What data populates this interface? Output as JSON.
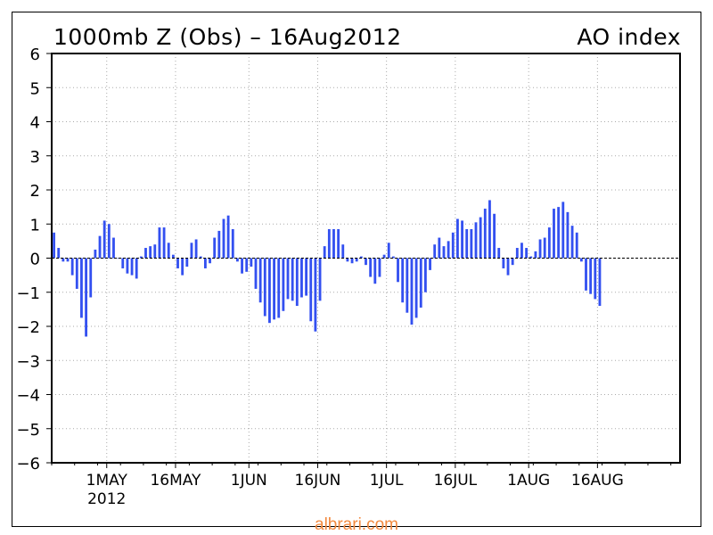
{
  "chart_data": {
    "type": "bar",
    "title": "1000mb Z (Obs) – 16Aug2012",
    "title_right": "AO index",
    "xlabel": "",
    "ylabel": "",
    "ylim": [
      -6,
      6
    ],
    "yticks": [
      6,
      5,
      4,
      3,
      2,
      1,
      0,
      -1,
      -2,
      -3,
      -4,
      -5,
      -6
    ],
    "ytick_labels": [
      "6",
      "5",
      "4",
      "3",
      "2",
      "1",
      "0",
      "−1",
      "−2",
      "−3",
      "−4",
      "−5",
      "−6"
    ],
    "xtick_labels": [
      "1MAY",
      "16MAY",
      "1JUN",
      "16JUN",
      "1JUL",
      "16JUL",
      "1AUG",
      "16AUG"
    ],
    "xtick_dates": [
      "2012-05-01",
      "2012-05-16",
      "2012-06-01",
      "2012-06-16",
      "2012-07-01",
      "2012-07-16",
      "2012-08-01",
      "2012-08-16"
    ],
    "x_sublabel": "2012",
    "x_range": [
      "2012-04-19",
      "2012-09-03"
    ],
    "grid": true,
    "zero_line": true,
    "bar_color": "#3350f0",
    "x": [
      "2012-04-19",
      "2012-04-20",
      "2012-04-21",
      "2012-04-22",
      "2012-04-23",
      "2012-04-24",
      "2012-04-25",
      "2012-04-26",
      "2012-04-27",
      "2012-04-28",
      "2012-04-29",
      "2012-04-30",
      "2012-05-01",
      "2012-05-02",
      "2012-05-03",
      "2012-05-04",
      "2012-05-05",
      "2012-05-06",
      "2012-05-07",
      "2012-05-08",
      "2012-05-09",
      "2012-05-10",
      "2012-05-11",
      "2012-05-12",
      "2012-05-13",
      "2012-05-14",
      "2012-05-15",
      "2012-05-16",
      "2012-05-17",
      "2012-05-18",
      "2012-05-19",
      "2012-05-20",
      "2012-05-21",
      "2012-05-22",
      "2012-05-23",
      "2012-05-24",
      "2012-05-25",
      "2012-05-26",
      "2012-05-27",
      "2012-05-28",
      "2012-05-29",
      "2012-05-30",
      "2012-05-31",
      "2012-06-01",
      "2012-06-02",
      "2012-06-03",
      "2012-06-04",
      "2012-06-05",
      "2012-06-06",
      "2012-06-07",
      "2012-06-08",
      "2012-06-09",
      "2012-06-10",
      "2012-06-11",
      "2012-06-12",
      "2012-06-13",
      "2012-06-14",
      "2012-06-15",
      "2012-06-16",
      "2012-06-17",
      "2012-06-18",
      "2012-06-19",
      "2012-06-20",
      "2012-06-21",
      "2012-06-22",
      "2012-06-23",
      "2012-06-24",
      "2012-06-25",
      "2012-06-26",
      "2012-06-27",
      "2012-06-28",
      "2012-06-29",
      "2012-06-30",
      "2012-07-01",
      "2012-07-02",
      "2012-07-03",
      "2012-07-04",
      "2012-07-05",
      "2012-07-06",
      "2012-07-07",
      "2012-07-08",
      "2012-07-09",
      "2012-07-10",
      "2012-07-11",
      "2012-07-12",
      "2012-07-13",
      "2012-07-14",
      "2012-07-15",
      "2012-07-16",
      "2012-07-17",
      "2012-07-18",
      "2012-07-19",
      "2012-07-20",
      "2012-07-21",
      "2012-07-22",
      "2012-07-23",
      "2012-07-24",
      "2012-07-25",
      "2012-07-26",
      "2012-07-27",
      "2012-07-28",
      "2012-07-29",
      "2012-07-30",
      "2012-07-31",
      "2012-08-01",
      "2012-08-02",
      "2012-08-03",
      "2012-08-04",
      "2012-08-05",
      "2012-08-06",
      "2012-08-07",
      "2012-08-08",
      "2012-08-09",
      "2012-08-10",
      "2012-08-11",
      "2012-08-12",
      "2012-08-13",
      "2012-08-14",
      "2012-08-15",
      "2012-08-16"
    ],
    "values": [
      0.75,
      0.3,
      -0.1,
      -0.1,
      -0.5,
      -0.9,
      -1.75,
      -2.3,
      -1.15,
      0.25,
      0.65,
      1.1,
      1.0,
      0.6,
      0.0,
      -0.3,
      -0.45,
      -0.5,
      -0.6,
      0.05,
      0.3,
      0.35,
      0.4,
      0.9,
      0.9,
      0.45,
      0.1,
      -0.3,
      -0.5,
      -0.25,
      0.45,
      0.55,
      0.05,
      -0.3,
      -0.15,
      0.6,
      0.8,
      1.15,
      1.25,
      0.85,
      -0.1,
      -0.45,
      -0.4,
      -0.25,
      -0.9,
      -1.3,
      -1.7,
      -1.9,
      -1.8,
      -1.75,
      -1.55,
      -1.2,
      -1.25,
      -1.4,
      -1.15,
      -1.1,
      -1.85,
      -2.15,
      -1.25,
      0.35,
      0.85,
      0.85,
      0.85,
      0.4,
      -0.1,
      -0.15,
      -0.1,
      0.05,
      -0.2,
      -0.55,
      -0.75,
      -0.55,
      0.1,
      0.45,
      0.05,
      -0.7,
      -1.3,
      -1.6,
      -1.95,
      -1.75,
      -1.45,
      -1.0,
      -0.35,
      0.4,
      0.6,
      0.35,
      0.5,
      0.75,
      1.15,
      1.1,
      0.85,
      0.85,
      1.05,
      1.2,
      1.45,
      1.7,
      1.3,
      0.3,
      -0.3,
      -0.5,
      -0.2,
      0.3,
      0.45,
      0.3,
      0.05,
      0.2,
      0.55,
      0.6,
      0.9,
      1.45,
      1.5,
      1.65,
      1.35,
      0.95,
      0.75,
      -0.1,
      -0.95,
      -1.05,
      -1.2,
      -1.4
    ]
  },
  "watermark": "albrari.com"
}
